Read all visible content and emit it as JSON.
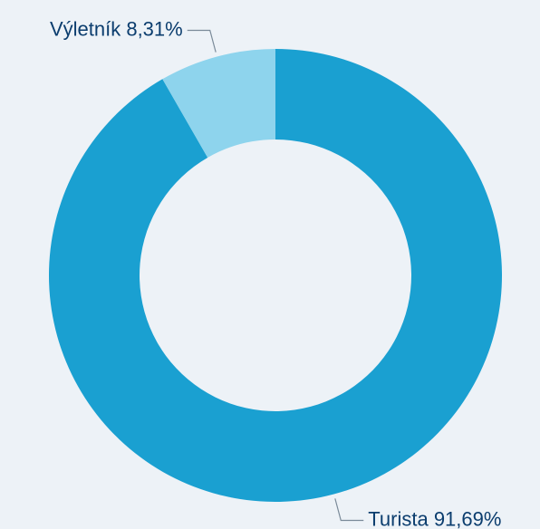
{
  "chart_data": {
    "type": "donut",
    "categories": [
      "Turista",
      "Výletník"
    ],
    "values": [
      91.69,
      8.31
    ],
    "value_labels": [
      "91,69%",
      "8,31%"
    ],
    "colors": [
      "#1aa0d1",
      "#8ed4ed"
    ]
  }
}
